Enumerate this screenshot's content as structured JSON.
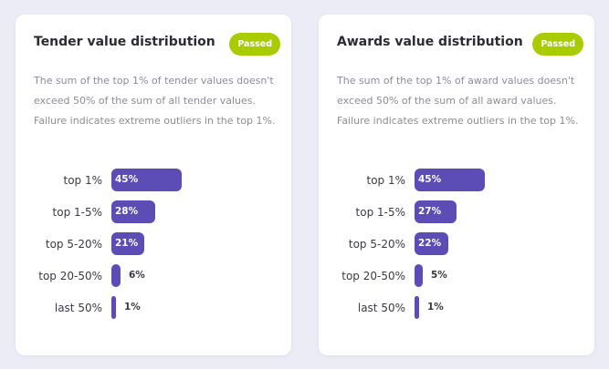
{
  "cards": [
    {
      "title": "Tender value distribution",
      "status": "Passed",
      "description": "The sum of the top 1% of tender values doesn't exceed 50% of the sum of all tender values. Failure indicates extreme outliers in the top 1%.",
      "chart_data": {
        "type": "bar",
        "categories": [
          "top 1%",
          "top 1-5%",
          "top 5-20%",
          "top 20-50%",
          "last 50%"
        ],
        "values": [
          45,
          28,
          21,
          6,
          1
        ],
        "value_labels": [
          "45%",
          "28%",
          "21%",
          "6%",
          "1%"
        ],
        "bar_color": "#5b4db5"
      }
    },
    {
      "title": "Awards value distribution",
      "status": "Passed",
      "description": "The sum of the top 1% of award values doesn't exceed 50% of the sum of all award values. Failure indicates extreme outliers in the top 1%.",
      "chart_data": {
        "type": "bar",
        "categories": [
          "top 1%",
          "top 1-5%",
          "top 5-20%",
          "top 20-50%",
          "last 50%"
        ],
        "values": [
          45,
          27,
          22,
          5,
          1
        ],
        "value_labels": [
          "45%",
          "27%",
          "22%",
          "5%",
          "1%"
        ],
        "bar_color": "#5b4db5"
      }
    }
  ],
  "colors": {
    "page_background": "#ececf6",
    "card_background": "#ffffff",
    "passed_badge": "#a9cc00",
    "bar": "#5b4db5"
  }
}
